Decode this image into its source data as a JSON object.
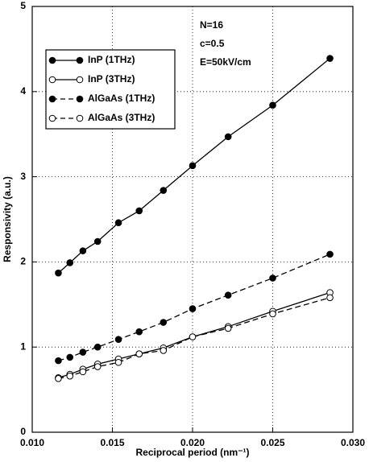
{
  "chart_data": {
    "type": "line",
    "xlabel": "Reciprocal period (nm⁻¹)",
    "ylabel": "Responsivity (a.u.)",
    "annotations": [
      "N=16",
      "c=0.5",
      "E=50kV/cm"
    ],
    "x": [
      0.01163,
      0.01235,
      0.01316,
      0.01408,
      0.01538,
      0.01667,
      0.01818,
      0.02,
      0.02222,
      0.025,
      0.02857
    ],
    "series": [
      {
        "name": "InP (1THz)",
        "color": "#000000",
        "marker": "filled",
        "dashed": false,
        "values": [
          1.87,
          1.99,
          2.13,
          2.24,
          2.46,
          2.6,
          2.84,
          3.13,
          3.47,
          3.84,
          4.39
        ]
      },
      {
        "name": "InP (3THz)",
        "color": "#000000",
        "marker": "open",
        "dashed": false,
        "values": [
          0.64,
          0.68,
          0.74,
          0.8,
          0.86,
          0.92,
          0.99,
          1.12,
          1.24,
          1.42,
          1.64
        ]
      },
      {
        "name": "AlGaAs (1THz)",
        "color": "#000000",
        "marker": "filled",
        "dashed": true,
        "values": [
          0.84,
          0.88,
          0.94,
          1.0,
          1.09,
          1.18,
          1.29,
          1.45,
          1.61,
          1.81,
          2.09
        ]
      },
      {
        "name": "AlGaAs (3THz)",
        "color": "#000000",
        "marker": "open",
        "dashed": true,
        "values": [
          0.63,
          0.66,
          0.71,
          0.77,
          0.82,
          0.92,
          0.96,
          1.12,
          1.22,
          1.39,
          1.58
        ]
      }
    ],
    "xlim": [
      0.01,
      0.03
    ],
    "xticks": [
      {
        "value": 0.01,
        "label": "0.010"
      },
      0.015,
      {
        "value": 0.02,
        "label": "0.020"
      },
      0.025,
      {
        "value": 0.03,
        "label": "0.030"
      }
    ],
    "ylim": [
      0,
      5
    ],
    "yticks": [
      0,
      1,
      2,
      3,
      4,
      5
    ],
    "grid": true,
    "legend": "upper left"
  }
}
